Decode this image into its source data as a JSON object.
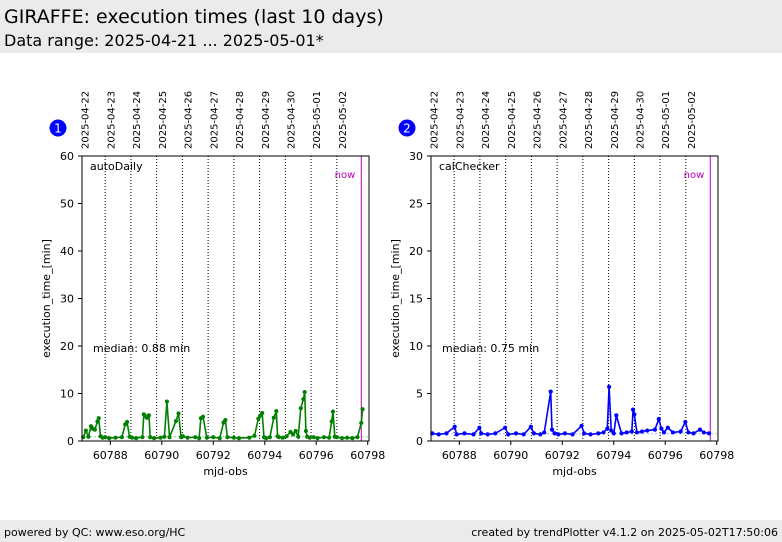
{
  "header": {
    "title": "GIRAFFE: execution times (last 10 days)",
    "subtitle": "Data range: 2025-04-21 ... 2025-05-01*"
  },
  "footer": {
    "left": "powered by QC: www.eso.org/HC",
    "right": "created by trendPlotter v4.1.2 on 2025-05-02T17:50:06"
  },
  "colors": {
    "panel1": "#008000",
    "panel2": "#0000ff",
    "now": "#bf00bf",
    "badge": "#0000ff"
  },
  "chart_data": [
    {
      "type": "line",
      "badge": "1",
      "label": "autoDaily",
      "xlabel": "mjd-obs",
      "ylabel": "execution_time_[min]",
      "xlim": [
        60786.9,
        60798.05
      ],
      "ylim": [
        0,
        60
      ],
      "xticks": [
        60788,
        60790,
        60792,
        60794,
        60796,
        60798
      ],
      "yticks": [
        0,
        10,
        20,
        30,
        40,
        50,
        60
      ],
      "date_marks": [
        {
          "x": 60787.0,
          "label": "2025-04-22"
        },
        {
          "x": 60788.0,
          "label": "2025-04-23"
        },
        {
          "x": 60789.0,
          "label": "2025-04-24"
        },
        {
          "x": 60790.0,
          "label": "2025-04-25"
        },
        {
          "x": 60791.0,
          "label": "2025-04-26"
        },
        {
          "x": 60792.0,
          "label": "2025-04-27"
        },
        {
          "x": 60793.0,
          "label": "2025-04-28"
        },
        {
          "x": 60794.0,
          "label": "2025-04-29"
        },
        {
          "x": 60795.0,
          "label": "2025-04-30"
        },
        {
          "x": 60796.0,
          "label": "2025-05-01"
        },
        {
          "x": 60797.0,
          "label": "2025-05-02"
        }
      ],
      "day_lines": [
        60787.8,
        60788.8,
        60789.8,
        60790.8,
        60791.8,
        60792.8,
        60793.8,
        60794.8,
        60795.8,
        60796.8
      ],
      "now_x": 60797.75,
      "now_label": "now",
      "median_text": "median: 0.88 min",
      "median": 0.88,
      "series": [
        {
          "x": [
            60786.95,
            60787.05,
            60787.15,
            60787.25,
            60787.32,
            60787.4,
            60787.5,
            60787.55,
            60787.62,
            60787.7,
            60787.8,
            60787.95,
            60788.2,
            60788.45,
            60788.58,
            60788.65,
            60788.75,
            60788.85,
            60789.0,
            60789.25,
            60789.3,
            60789.35,
            60789.42,
            60789.5,
            60789.55,
            60789.7,
            60789.95,
            60790.1,
            60790.2,
            60790.3,
            60790.55,
            60790.65,
            60790.75,
            60790.82,
            60791.0,
            60791.3,
            60791.45,
            60791.52,
            60791.6,
            60791.75,
            60792.0,
            60792.25,
            60792.4,
            60792.47,
            60792.55,
            60792.8,
            60793.0,
            60793.4,
            60793.6,
            60793.75,
            60793.82,
            60793.9,
            60793.97,
            60794.05,
            60794.2,
            60794.35,
            60794.45,
            60794.5,
            60794.55,
            60794.7,
            60794.85,
            60795.0,
            60795.1,
            60795.2,
            60795.3,
            60795.4,
            60795.5,
            60795.55,
            60795.6,
            60795.65,
            60795.75,
            60795.9,
            60796.05,
            60796.3,
            60796.5,
            60796.6,
            60796.65,
            60796.72,
            60796.8,
            60797.0,
            60797.2,
            60797.4,
            60797.6,
            60797.75,
            60797.8
          ],
          "y": [
            0.8,
            2.2,
            0.9,
            3.1,
            2.6,
            2.4,
            4.1,
            4.8,
            1.0,
            0.7,
            0.8,
            0.6,
            0.7,
            0.8,
            3.5,
            4.0,
            0.9,
            0.7,
            0.6,
            0.8,
            5.6,
            5.3,
            4.9,
            5.4,
            0.8,
            0.6,
            0.7,
            0.9,
            8.3,
            0.8,
            4.2,
            5.8,
            0.8,
            1.0,
            0.7,
            0.8,
            0.6,
            4.8,
            5.1,
            0.7,
            0.8,
            0.6,
            3.9,
            4.4,
            0.8,
            0.7,
            0.6,
            0.7,
            1.1,
            4.7,
            5.3,
            5.9,
            0.8,
            0.6,
            0.8,
            4.9,
            6.3,
            1.0,
            0.8,
            0.7,
            1.0,
            1.9,
            1.4,
            2.1,
            0.9,
            6.9,
            8.8,
            10.3,
            2.1,
            0.9,
            0.7,
            0.8,
            0.6,
            0.8,
            0.7,
            4.1,
            6.2,
            0.9,
            0.8,
            0.6,
            0.7,
            0.6,
            0.8,
            3.8,
            6.7
          ]
        }
      ]
    },
    {
      "type": "line",
      "badge": "2",
      "label": "calChecker",
      "xlabel": "mjd-obs",
      "ylabel": "execution_time_[min]",
      "xlim": [
        60786.9,
        60798.05
      ],
      "ylim": [
        0,
        30
      ],
      "xticks": [
        60788,
        60790,
        60792,
        60794,
        60796,
        60798
      ],
      "yticks": [
        0,
        5,
        10,
        15,
        20,
        25,
        30
      ],
      "date_marks": [
        {
          "x": 60787.0,
          "label": "2025-04-22"
        },
        {
          "x": 60788.0,
          "label": "2025-04-23"
        },
        {
          "x": 60789.0,
          "label": "2025-04-24"
        },
        {
          "x": 60790.0,
          "label": "2025-04-25"
        },
        {
          "x": 60791.0,
          "label": "2025-04-26"
        },
        {
          "x": 60792.0,
          "label": "2025-04-27"
        },
        {
          "x": 60793.0,
          "label": "2025-04-28"
        },
        {
          "x": 60794.0,
          "label": "2025-04-29"
        },
        {
          "x": 60795.0,
          "label": "2025-04-30"
        },
        {
          "x": 60796.0,
          "label": "2025-05-01"
        },
        {
          "x": 60797.0,
          "label": "2025-05-02"
        }
      ],
      "day_lines": [
        60787.8,
        60788.8,
        60789.8,
        60790.8,
        60791.8,
        60792.8,
        60793.8,
        60794.8,
        60795.8,
        60796.8
      ],
      "now_x": 60797.75,
      "now_label": "now",
      "median_text": "median: 0.75 min",
      "median": 0.75,
      "series": [
        {
          "x": [
            60786.95,
            60787.2,
            60787.5,
            60787.82,
            60787.9,
            60788.2,
            60788.55,
            60788.78,
            60788.85,
            60789.1,
            60789.4,
            60789.78,
            60789.9,
            60790.2,
            60790.5,
            60790.78,
            60790.9,
            60791.15,
            60791.3,
            60791.55,
            60791.6,
            60791.7,
            60791.85,
            60792.1,
            60792.4,
            60792.75,
            60792.85,
            60793.1,
            60793.4,
            60793.6,
            60793.75,
            60793.82,
            60793.9,
            60794.0,
            60794.1,
            60794.3,
            60794.5,
            60794.7,
            60794.75,
            60794.8,
            60794.9,
            60795.1,
            60795.3,
            60795.6,
            60795.75,
            60795.85,
            60795.95,
            60796.1,
            60796.3,
            60796.6,
            60796.78,
            60796.9,
            60797.1,
            60797.35,
            60797.5,
            60797.7
          ],
          "y": [
            0.8,
            0.7,
            0.8,
            1.5,
            0.7,
            0.8,
            0.7,
            1.4,
            0.8,
            0.7,
            0.8,
            1.4,
            0.7,
            0.8,
            0.7,
            1.5,
            0.8,
            0.7,
            0.9,
            5.2,
            1.2,
            0.8,
            0.7,
            0.8,
            0.7,
            1.6,
            0.8,
            0.7,
            0.8,
            0.9,
            1.3,
            5.7,
            1.1,
            0.8,
            2.7,
            0.8,
            0.9,
            1.0,
            3.3,
            2.8,
            0.9,
            1.0,
            1.1,
            1.2,
            2.3,
            1.3,
            0.9,
            1.4,
            0.9,
            1.0,
            2.0,
            0.9,
            0.8,
            1.2,
            0.9,
            0.8
          ]
        }
      ]
    }
  ]
}
